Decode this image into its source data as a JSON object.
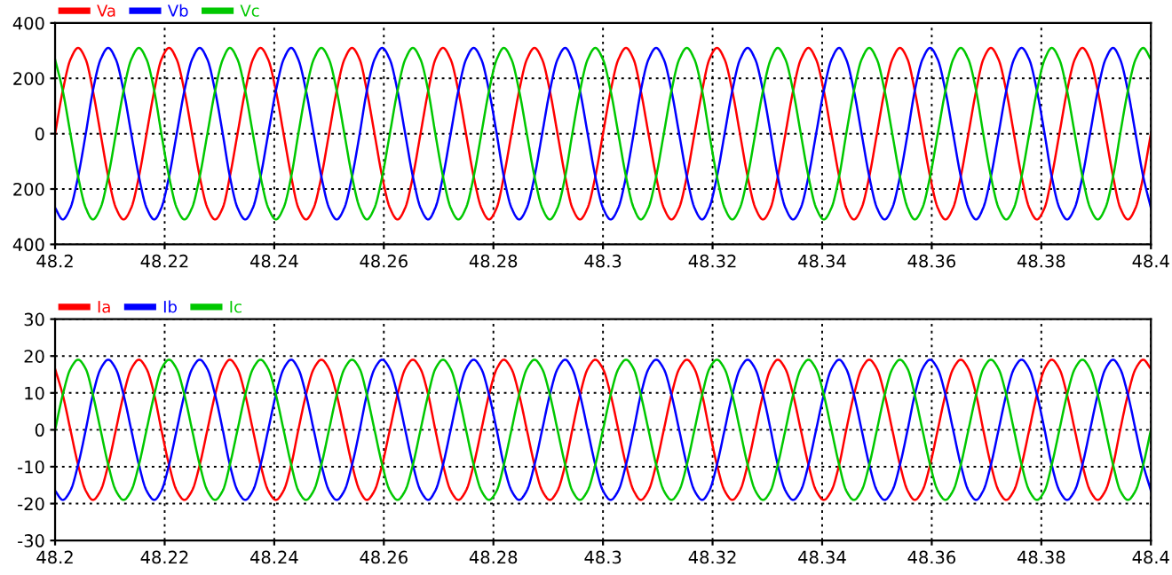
{
  "chart_data": [
    {
      "type": "line",
      "xlim": [
        48.2,
        48.4
      ],
      "ylim": [
        -400,
        400
      ],
      "xticks": [
        48.2,
        48.22,
        48.24,
        48.26,
        48.28,
        48.3,
        48.32,
        48.34,
        48.36,
        48.38,
        48.4
      ],
      "yticks": [
        {
          "value": -400,
          "label": "400"
        },
        {
          "value": -200,
          "label": "200"
        },
        0,
        200,
        400
      ],
      "grid": true,
      "legend": "top left",
      "line_style": "solid",
      "x": [
        48.2,
        48.2014,
        48.2028,
        48.2042,
        48.2056,
        48.2069,
        48.2083,
        48.2097,
        48.2111,
        48.2125,
        48.2139,
        48.2153,
        48.2167,
        48.2181,
        48.2194,
        48.2208,
        48.2222,
        48.2236,
        48.225,
        48.2264,
        48.2278,
        48.2292,
        48.2306,
        48.2319,
        48.2333,
        48.2347,
        48.2361,
        48.2375,
        48.2389,
        48.2403,
        48.2417,
        48.2431,
        48.2444,
        48.2458,
        48.2472,
        48.2486,
        48.25,
        48.2514,
        48.2528,
        48.2542,
        48.2556,
        48.2569,
        48.2583,
        48.2597,
        48.2611,
        48.2625,
        48.2639,
        48.2653,
        48.2667,
        48.2681,
        48.2694,
        48.2708,
        48.2722,
        48.2736,
        48.275,
        48.2764,
        48.2778,
        48.2792,
        48.2806,
        48.2819,
        48.2833,
        48.2847,
        48.2861,
        48.2875,
        48.2889,
        48.2903,
        48.2917,
        48.2931,
        48.2944,
        48.2958,
        48.2972,
        48.2986,
        48.3,
        48.3014,
        48.3028,
        48.3042,
        48.3056,
        48.3069,
        48.3083,
        48.3097,
        48.3111,
        48.3125,
        48.3139,
        48.3153,
        48.3167,
        48.3181,
        48.3194,
        48.3208,
        48.3222,
        48.3236,
        48.325,
        48.3264,
        48.3278,
        48.3292,
        48.3306,
        48.3319,
        48.3333,
        48.3347,
        48.3361,
        48.3375,
        48.3389,
        48.3403,
        48.3417,
        48.3431,
        48.3444,
        48.3458,
        48.3472,
        48.3486,
        48.35,
        48.3514,
        48.3528,
        48.3542,
        48.3556,
        48.3569,
        48.3583,
        48.3597,
        48.3611,
        48.3625,
        48.3639,
        48.3653,
        48.3667,
        48.3681,
        48.3694,
        48.3708,
        48.3722,
        48.3736,
        48.375,
        48.3764,
        48.3778,
        48.3792,
        48.3806,
        48.3819,
        48.3833,
        48.3847,
        48.3861,
        48.3875,
        48.3889,
        48.3903,
        48.3917,
        48.3931,
        48.3944,
        48.3958,
        48.3972,
        48.3986,
        48.4
      ],
      "series": [
        {
          "name": "Va",
          "color": "#ff0000",
          "values": [
            0,
            155,
            268,
            310,
            268,
            155,
            0,
            -155,
            -268,
            -310,
            -268,
            -155,
            0,
            155,
            268,
            310,
            268,
            155,
            0,
            -155,
            -268,
            -310,
            -268,
            -155,
            0,
            155,
            268,
            310,
            268,
            155,
            0,
            -155,
            -268,
            -310,
            -268,
            -155,
            0,
            155,
            268,
            310,
            268,
            155,
            0,
            -155,
            -268,
            -310,
            -268,
            -155,
            0,
            155,
            268,
            310,
            268,
            155,
            0,
            -155,
            -268,
            -310,
            -268,
            -155,
            0,
            155,
            268,
            310,
            268,
            155,
            0,
            -155,
            -268,
            -310,
            -268,
            -155,
            0,
            155,
            268,
            310,
            268,
            155,
            0,
            -155,
            -268,
            -310,
            -268,
            -155,
            0,
            155,
            268,
            310,
            268,
            155,
            0,
            -155,
            -268,
            -310,
            -268,
            -155,
            0,
            155,
            268,
            310,
            268,
            155,
            0,
            -155,
            -268,
            -310,
            -268,
            -155,
            0,
            155,
            268,
            310,
            268,
            155,
            0,
            -155,
            -268,
            -310,
            -268,
            -155,
            0,
            155,
            268,
            310,
            268,
            155,
            0,
            -155,
            -268,
            -310,
            -268,
            -155,
            0,
            155,
            268,
            310,
            268,
            155,
            0,
            -155,
            -268,
            -310,
            -268,
            -155,
            0
          ]
        },
        {
          "name": "Vb",
          "color": "#0000ff",
          "values": [
            -268,
            -310,
            -268,
            -155,
            0,
            155,
            268,
            310,
            268,
            155,
            0,
            -155,
            -268,
            -310,
            -268,
            -155,
            0,
            155,
            268,
            310,
            268,
            155,
            0,
            -155,
            -268,
            -310,
            -268,
            -155,
            0,
            155,
            268,
            310,
            268,
            155,
            0,
            -155,
            -268,
            -310,
            -268,
            -155,
            0,
            155,
            268,
            310,
            268,
            155,
            0,
            -155,
            -268,
            -310,
            -268,
            -155,
            0,
            155,
            268,
            310,
            268,
            155,
            0,
            -155,
            -268,
            -310,
            -268,
            -155,
            0,
            155,
            268,
            310,
            268,
            155,
            0,
            -155,
            -268,
            -310,
            -268,
            -155,
            0,
            155,
            268,
            310,
            268,
            155,
            0,
            -155,
            -268,
            -310,
            -268,
            -155,
            0,
            155,
            268,
            310,
            268,
            155,
            0,
            -155,
            -268,
            -310,
            -268,
            -155,
            0,
            155,
            268,
            310,
            268,
            155,
            0,
            -155,
            -268,
            -310,
            -268,
            -155,
            0,
            155,
            268,
            310,
            268,
            155,
            0,
            -155,
            -268,
            -310,
            -268,
            -155,
            0,
            155,
            268,
            310,
            268,
            155,
            0,
            -155,
            -268,
            -310,
            -268,
            -155,
            0,
            155,
            268,
            310,
            268,
            155,
            0,
            -155,
            -268
          ]
        },
        {
          "name": "Vc",
          "color": "#00c800",
          "values": [
            268,
            155,
            0,
            -155,
            -268,
            -310,
            -268,
            -155,
            0,
            155,
            268,
            310,
            268,
            155,
            0,
            -155,
            -268,
            -310,
            -268,
            -155,
            0,
            155,
            268,
            310,
            268,
            155,
            0,
            -155,
            -268,
            -310,
            -268,
            -155,
            0,
            155,
            268,
            310,
            268,
            155,
            0,
            -155,
            -268,
            -310,
            -268,
            -155,
            0,
            155,
            268,
            310,
            268,
            155,
            0,
            -155,
            -268,
            -310,
            -268,
            -155,
            0,
            155,
            268,
            310,
            268,
            155,
            0,
            -155,
            -268,
            -310,
            -268,
            -155,
            0,
            155,
            268,
            310,
            268,
            155,
            0,
            -155,
            -268,
            -310,
            -268,
            -155,
            0,
            155,
            268,
            310,
            268,
            155,
            0,
            -155,
            -268,
            -310,
            -268,
            -155,
            0,
            155,
            268,
            310,
            268,
            155,
            0,
            -155,
            -268,
            -310,
            -268,
            -155,
            0,
            155,
            268,
            310,
            268,
            155,
            0,
            -155,
            -268,
            -310,
            -268,
            -155,
            0,
            155,
            268,
            310,
            268,
            155,
            0,
            -155,
            -268,
            -310,
            -268,
            -155,
            0,
            155,
            268,
            310,
            268,
            155,
            0,
            -155,
            -268,
            -310,
            -268,
            -155,
            0,
            155,
            268,
            310,
            268
          ]
        }
      ]
    },
    {
      "type": "line",
      "xlim": [
        48.2,
        48.4
      ],
      "ylim": [
        -30,
        30
      ],
      "xticks": [
        48.2,
        48.22,
        48.24,
        48.26,
        48.28,
        48.3,
        48.32,
        48.34,
        48.36,
        48.38,
        48.4
      ],
      "yticks": [
        -30,
        -20,
        -10,
        0,
        10,
        20,
        30
      ],
      "grid": true,
      "legend": "top left",
      "line_style": "solid",
      "x": [
        48.2,
        48.2014,
        48.2028,
        48.2042,
        48.2056,
        48.2069,
        48.2083,
        48.2097,
        48.2111,
        48.2125,
        48.2139,
        48.2153,
        48.2167,
        48.2181,
        48.2194,
        48.2208,
        48.2222,
        48.2236,
        48.225,
        48.2264,
        48.2278,
        48.2292,
        48.2306,
        48.2319,
        48.2333,
        48.2347,
        48.2361,
        48.2375,
        48.2389,
        48.2403,
        48.2417,
        48.2431,
        48.2444,
        48.2458,
        48.2472,
        48.2486,
        48.25,
        48.2514,
        48.2528,
        48.2542,
        48.2556,
        48.2569,
        48.2583,
        48.2597,
        48.2611,
        48.2625,
        48.2639,
        48.2653,
        48.2667,
        48.2681,
        48.2694,
        48.2708,
        48.2722,
        48.2736,
        48.275,
        48.2764,
        48.2778,
        48.2792,
        48.2806,
        48.2819,
        48.2833,
        48.2847,
        48.2861,
        48.2875,
        48.2889,
        48.2903,
        48.2917,
        48.2931,
        48.2944,
        48.2958,
        48.2972,
        48.2986,
        48.3,
        48.3014,
        48.3028,
        48.3042,
        48.3056,
        48.3069,
        48.3083,
        48.3097,
        48.3111,
        48.3125,
        48.3139,
        48.3153,
        48.3167,
        48.3181,
        48.3194,
        48.3208,
        48.3222,
        48.3236,
        48.325,
        48.3264,
        48.3278,
        48.3292,
        48.3306,
        48.3319,
        48.3333,
        48.3347,
        48.3361,
        48.3375,
        48.3389,
        48.3403,
        48.3417,
        48.3431,
        48.3444,
        48.3458,
        48.3472,
        48.3486,
        48.35,
        48.3514,
        48.3528,
        48.3542,
        48.3556,
        48.3569,
        48.3583,
        48.3597,
        48.3611,
        48.3625,
        48.3639,
        48.3653,
        48.3667,
        48.3681,
        48.3694,
        48.3708,
        48.3722,
        48.3736,
        48.375,
        48.3764,
        48.3778,
        48.3792,
        48.3806,
        48.3819,
        48.3833,
        48.3847,
        48.3861,
        48.3875,
        48.3889,
        48.3903,
        48.3917,
        48.3931,
        48.3944,
        48.3958,
        48.3972,
        48.3986,
        48.4
      ],
      "series": [
        {
          "name": "Ia",
          "color": "#ff0000",
          "values": [
            16.5,
            9.5,
            0,
            -9.5,
            -16.5,
            -19,
            -16.5,
            -9.5,
            0,
            9.5,
            16.5,
            19,
            16.5,
            9.5,
            0,
            -9.5,
            -16.5,
            -19,
            -16.5,
            -9.5,
            0,
            9.5,
            16.5,
            19,
            16.5,
            9.5,
            0,
            -9.5,
            -16.5,
            -19,
            -16.5,
            -9.5,
            0,
            9.5,
            16.5,
            19,
            16.5,
            9.5,
            0,
            -9.5,
            -16.5,
            -19,
            -16.5,
            -9.5,
            0,
            9.5,
            16.5,
            19,
            16.5,
            9.5,
            0,
            -9.5,
            -16.5,
            -19,
            -16.5,
            -9.5,
            0,
            9.5,
            16.5,
            19,
            16.5,
            9.5,
            0,
            -9.5,
            -16.5,
            -19,
            -16.5,
            -9.5,
            0,
            9.5,
            16.5,
            19,
            16.5,
            9.5,
            0,
            -9.5,
            -16.5,
            -19,
            -16.5,
            -9.5,
            0,
            9.5,
            16.5,
            19,
            16.5,
            9.5,
            0,
            -9.5,
            -16.5,
            -19,
            -16.5,
            -9.5,
            0,
            9.5,
            16.5,
            19,
            16.5,
            9.5,
            0,
            -9.5,
            -16.5,
            -19,
            -16.5,
            -9.5,
            0,
            9.5,
            16.5,
            19,
            16.5,
            9.5,
            0,
            -9.5,
            -16.5,
            -19,
            -16.5,
            -9.5,
            0,
            9.5,
            16.5,
            19,
            16.5,
            9.5,
            0,
            -9.5,
            -16.5,
            -19,
            -16.5,
            -9.5,
            0,
            9.5,
            16.5,
            19,
            16.5,
            9.5,
            0,
            -9.5,
            -16.5,
            -19,
            -16.5,
            -9.5,
            0,
            9.5,
            16.5,
            19,
            16.5
          ]
        },
        {
          "name": "Ib",
          "color": "#0000ff",
          "values": [
            -16.5,
            -19,
            -16.5,
            -9.5,
            0,
            9.5,
            16.5,
            19,
            16.5,
            9.5,
            0,
            -9.5,
            -16.5,
            -19,
            -16.5,
            -9.5,
            0,
            9.5,
            16.5,
            19,
            16.5,
            9.5,
            0,
            -9.5,
            -16.5,
            -19,
            -16.5,
            -9.5,
            0,
            9.5,
            16.5,
            19,
            16.5,
            9.5,
            0,
            -9.5,
            -16.5,
            -19,
            -16.5,
            -9.5,
            0,
            9.5,
            16.5,
            19,
            16.5,
            9.5,
            0,
            -9.5,
            -16.5,
            -19,
            -16.5,
            -9.5,
            0,
            9.5,
            16.5,
            19,
            16.5,
            9.5,
            0,
            -9.5,
            -16.5,
            -19,
            -16.5,
            -9.5,
            0,
            9.5,
            16.5,
            19,
            16.5,
            9.5,
            0,
            -9.5,
            -16.5,
            -19,
            -16.5,
            -9.5,
            0,
            9.5,
            16.5,
            19,
            16.5,
            9.5,
            0,
            -9.5,
            -16.5,
            -19,
            -16.5,
            -9.5,
            0,
            9.5,
            16.5,
            19,
            16.5,
            9.5,
            0,
            -9.5,
            -16.5,
            -19,
            -16.5,
            -9.5,
            0,
            9.5,
            16.5,
            19,
            16.5,
            9.5,
            0,
            -9.5,
            -16.5,
            -19,
            -16.5,
            -9.5,
            0,
            9.5,
            16.5,
            19,
            16.5,
            9.5,
            0,
            -9.5,
            -16.5,
            -19,
            -16.5,
            -9.5,
            0,
            9.5,
            16.5,
            19,
            16.5,
            9.5,
            0,
            -9.5,
            -16.5,
            -19,
            -16.5,
            -9.5,
            0,
            9.5,
            16.5,
            19,
            16.5,
            9.5,
            0,
            -9.5,
            -16.5
          ]
        },
        {
          "name": "Ic",
          "color": "#00c800",
          "values": [
            0,
            9.5,
            16.5,
            19,
            16.5,
            9.5,
            0,
            -9.5,
            -16.5,
            -19,
            -16.5,
            -9.5,
            0,
            9.5,
            16.5,
            19,
            16.5,
            9.5,
            0,
            -9.5,
            -16.5,
            -19,
            -16.5,
            -9.5,
            0,
            9.5,
            16.5,
            19,
            16.5,
            9.5,
            0,
            -9.5,
            -16.5,
            -19,
            -16.5,
            -9.5,
            0,
            9.5,
            16.5,
            19,
            16.5,
            9.5,
            0,
            -9.5,
            -16.5,
            -19,
            -16.5,
            -9.5,
            0,
            9.5,
            16.5,
            19,
            16.5,
            9.5,
            0,
            -9.5,
            -16.5,
            -19,
            -16.5,
            -9.5,
            0,
            9.5,
            16.5,
            19,
            16.5,
            9.5,
            0,
            -9.5,
            -16.5,
            -19,
            -16.5,
            -9.5,
            0,
            9.5,
            16.5,
            19,
            16.5,
            9.5,
            0,
            -9.5,
            -16.5,
            -19,
            -16.5,
            -9.5,
            0,
            9.5,
            16.5,
            19,
            16.5,
            9.5,
            0,
            -9.5,
            -16.5,
            -19,
            -16.5,
            -9.5,
            0,
            9.5,
            16.5,
            19,
            16.5,
            9.5,
            0,
            -9.5,
            -16.5,
            -19,
            -16.5,
            -9.5,
            0,
            9.5,
            16.5,
            19,
            16.5,
            9.5,
            0,
            -9.5,
            -16.5,
            -19,
            -16.5,
            -9.5,
            0,
            9.5,
            16.5,
            19,
            16.5,
            9.5,
            0,
            -9.5,
            -16.5,
            -19,
            -16.5,
            -9.5,
            0,
            9.5,
            16.5,
            19,
            16.5,
            9.5,
            0,
            -9.5,
            -16.5,
            -19,
            -16.5,
            -9.5,
            0
          ]
        }
      ]
    }
  ]
}
